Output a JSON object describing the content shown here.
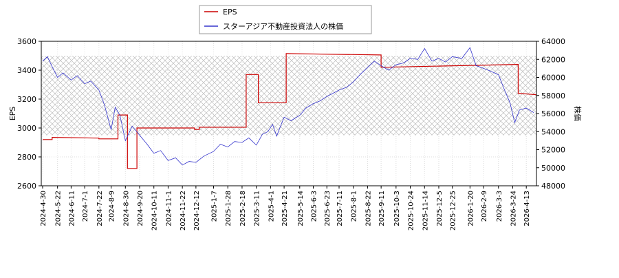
{
  "chart_data": {
    "type": "line",
    "xlim": [
      "2024-4-28",
      "2026-4-28"
    ],
    "xticks": [
      "2024-4-30",
      "2024-5-22",
      "2024-6-11",
      "2024-7-1",
      "2024-7-22",
      "2024-8-9",
      "2024-8-30",
      "2024-9-20",
      "2024-10-11",
      "2024-11-1",
      "2024-11-22",
      "2024-12-12",
      "2025-1-7",
      "2025-1-28",
      "2025-2-18",
      "2025-3-11",
      "2025-4-1",
      "2025-4-21",
      "2025-5-14",
      "2025-6-3",
      "2025-6-23",
      "2025-7-11",
      "2025-8-1",
      "2025-8-22",
      "2025-9-11",
      "2025-10-3",
      "2025-10-24",
      "2025-11-14",
      "2025-12-5",
      "2025-12-25",
      "2026-1-20",
      "2026-2-9",
      "2026-3-3",
      "2026-3-24",
      "2026-4-13"
    ],
    "ylabel": "EPS",
    "ylim": [
      2600,
      3600
    ],
    "yticks": [
      2600,
      2800,
      3000,
      3200,
      3400,
      3600
    ],
    "y2label": "株価",
    "y2lim": [
      48000,
      64000
    ],
    "y2ticks": [
      48000,
      50000,
      52000,
      54000,
      56000,
      58000,
      60000,
      62000,
      64000
    ],
    "shaded_range": [
      2950,
      3500
    ],
    "grid": true,
    "series": [
      {
        "name": "EPS",
        "color": "#cc0000",
        "x": [
          "2024-4-30",
          "2024-5-14",
          "2024-5-14",
          "2024-7-22",
          "2024-7-22",
          "2024-8-19",
          "2024-8-19",
          "2024-9-2",
          "2024-9-2",
          "2024-9-16",
          "2024-9-16",
          "2024-12-10",
          "2024-12-10",
          "2024-12-17",
          "2024-12-17",
          "2025-2-24",
          "2025-2-24",
          "2025-3-14",
          "2025-3-14",
          "2025-4-24",
          "2025-4-24",
          "2025-9-11",
          "2025-9-11",
          "2026-4-1",
          "2026-4-1",
          "2026-4-28"
        ],
        "values": [
          2920,
          2920,
          2935,
          2930,
          2925,
          2925,
          3090,
          3090,
          2720,
          2720,
          3000,
          3000,
          2990,
          2990,
          3005,
          3005,
          3370,
          3370,
          3175,
          3175,
          3515,
          3505,
          3420,
          3440,
          3240,
          3230
        ]
      },
      {
        "name": "スターアジア不動産投資法人の株価",
        "color": "#3333cc",
        "axis": "y2",
        "x": [
          "2024-4-30",
          "2024-5-7",
          "2024-5-14",
          "2024-5-22",
          "2024-5-30",
          "2024-6-11",
          "2024-6-20",
          "2024-7-1",
          "2024-7-10",
          "2024-7-22",
          "2024-7-30",
          "2024-8-9",
          "2024-8-15",
          "2024-8-22",
          "2024-8-30",
          "2024-9-9",
          "2024-9-20",
          "2024-10-1",
          "2024-10-11",
          "2024-10-21",
          "2024-11-1",
          "2024-11-12",
          "2024-11-22",
          "2024-12-2",
          "2024-12-12",
          "2024-12-24",
          "2025-1-7",
          "2025-1-17",
          "2025-1-28",
          "2025-2-7",
          "2025-2-18",
          "2025-2-28",
          "2025-3-11",
          "2025-3-20",
          "2025-3-28",
          "2025-4-4",
          "2025-4-10",
          "2025-4-21",
          "2025-5-1",
          "2025-5-14",
          "2025-5-23",
          "2025-6-3",
          "2025-6-13",
          "2025-6-23",
          "2025-7-1",
          "2025-7-11",
          "2025-7-22",
          "2025-8-1",
          "2025-8-12",
          "2025-8-22",
          "2025-9-1",
          "2025-9-11",
          "2025-9-22",
          "2025-10-3",
          "2025-10-14",
          "2025-10-24",
          "2025-11-4",
          "2025-11-14",
          "2025-11-25",
          "2025-12-5",
          "2025-12-15",
          "2025-12-25",
          "2026-1-8",
          "2026-1-20",
          "2026-1-29",
          "2026-2-9",
          "2026-2-19",
          "2026-3-3",
          "2026-3-12",
          "2026-3-20",
          "2026-3-27",
          "2026-4-3",
          "2026-4-13",
          "2026-4-24"
        ],
        "values": [
          61800,
          62300,
          61200,
          60000,
          60500,
          59700,
          60200,
          59300,
          59600,
          58600,
          57000,
          54200,
          56700,
          55800,
          53000,
          54600,
          53600,
          52600,
          51600,
          51900,
          50800,
          51100,
          50300,
          50700,
          50600,
          51300,
          51800,
          52600,
          52300,
          52900,
          52800,
          53300,
          52500,
          53700,
          54000,
          54800,
          53500,
          55600,
          55200,
          55800,
          56600,
          57100,
          57400,
          57900,
          58200,
          58600,
          58900,
          59500,
          60400,
          61100,
          61800,
          61300,
          60800,
          61400,
          61600,
          62100,
          62000,
          63200,
          61800,
          62100,
          61700,
          62300,
          62100,
          63300,
          61300,
          61000,
          60700,
          60300,
          58600,
          57200,
          55000,
          56400,
          56600,
          56100
        ]
      }
    ]
  }
}
